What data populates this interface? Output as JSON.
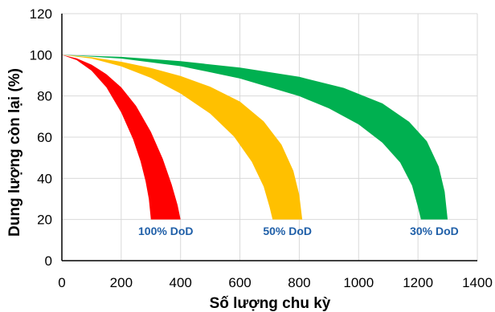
{
  "chart_data": {
    "type": "area",
    "title": "",
    "xlabel": "Số lượng chu kỳ",
    "ylabel": "Dung lượng còn lại (%)",
    "xlim": [
      0,
      1400
    ],
    "ylim": [
      0,
      120
    ],
    "xticks": [
      0,
      200,
      400,
      600,
      800,
      1000,
      1200,
      1400
    ],
    "yticks": [
      0,
      20,
      40,
      60,
      80,
      100,
      120
    ],
    "grid": true,
    "label_color": "#1F5FA8",
    "series": [
      {
        "name": "100% DoD",
        "color": "#FF0000",
        "upper": [
          [
            0,
            100
          ],
          [
            50,
            98.3
          ],
          [
            100,
            95.2
          ],
          [
            150,
            90.6
          ],
          [
            200,
            84.2
          ],
          [
            250,
            75.2
          ],
          [
            300,
            62.6
          ],
          [
            340,
            49.5
          ],
          [
            370,
            37
          ],
          [
            390,
            27
          ],
          [
            400,
            20
          ]
        ],
        "lower": [
          [
            0,
            100
          ],
          [
            50,
            97.4
          ],
          [
            100,
            92.3
          ],
          [
            150,
            84.2
          ],
          [
            200,
            72
          ],
          [
            240,
            59
          ],
          [
            265,
            48.3
          ],
          [
            282,
            38.6
          ],
          [
            293,
            30
          ],
          [
            300,
            20
          ]
        ]
      },
      {
        "name": "50% DoD",
        "color": "#FFC000",
        "upper": [
          [
            0,
            100
          ],
          [
            100,
            98.8
          ],
          [
            200,
            96.6
          ],
          [
            300,
            93.6
          ],
          [
            400,
            89.7
          ],
          [
            500,
            84.5
          ],
          [
            600,
            77.3
          ],
          [
            680,
            67.7
          ],
          [
            740,
            56.4
          ],
          [
            780,
            43.7
          ],
          [
            800,
            32
          ],
          [
            810,
            20
          ]
        ],
        "lower": [
          [
            0,
            100
          ],
          [
            100,
            98.2
          ],
          [
            200,
            94.4
          ],
          [
            300,
            88.8
          ],
          [
            400,
            81.2
          ],
          [
            500,
            71.4
          ],
          [
            580,
            60.3
          ],
          [
            640,
            48
          ],
          [
            680,
            36
          ],
          [
            700,
            26
          ],
          [
            710,
            20
          ]
        ]
      },
      {
        "name": "30% DoD",
        "color": "#00B050",
        "upper": [
          [
            0,
            100
          ],
          [
            200,
            99
          ],
          [
            400,
            96.9
          ],
          [
            600,
            93.8
          ],
          [
            800,
            89.3
          ],
          [
            950,
            83.9
          ],
          [
            1080,
            76.4
          ],
          [
            1170,
            67.5
          ],
          [
            1230,
            58
          ],
          [
            1270,
            45.7
          ],
          [
            1290,
            33.5
          ],
          [
            1300,
            20
          ]
        ],
        "lower": [
          [
            0,
            100
          ],
          [
            200,
            98.2
          ],
          [
            400,
            94.5
          ],
          [
            600,
            88.5
          ],
          [
            800,
            79.9
          ],
          [
            900,
            74
          ],
          [
            1000,
            66.2
          ],
          [
            1080,
            57.3
          ],
          [
            1140,
            47.7
          ],
          [
            1180,
            36.5
          ],
          [
            1200,
            26
          ],
          [
            1210,
            20
          ]
        ]
      }
    ]
  }
}
